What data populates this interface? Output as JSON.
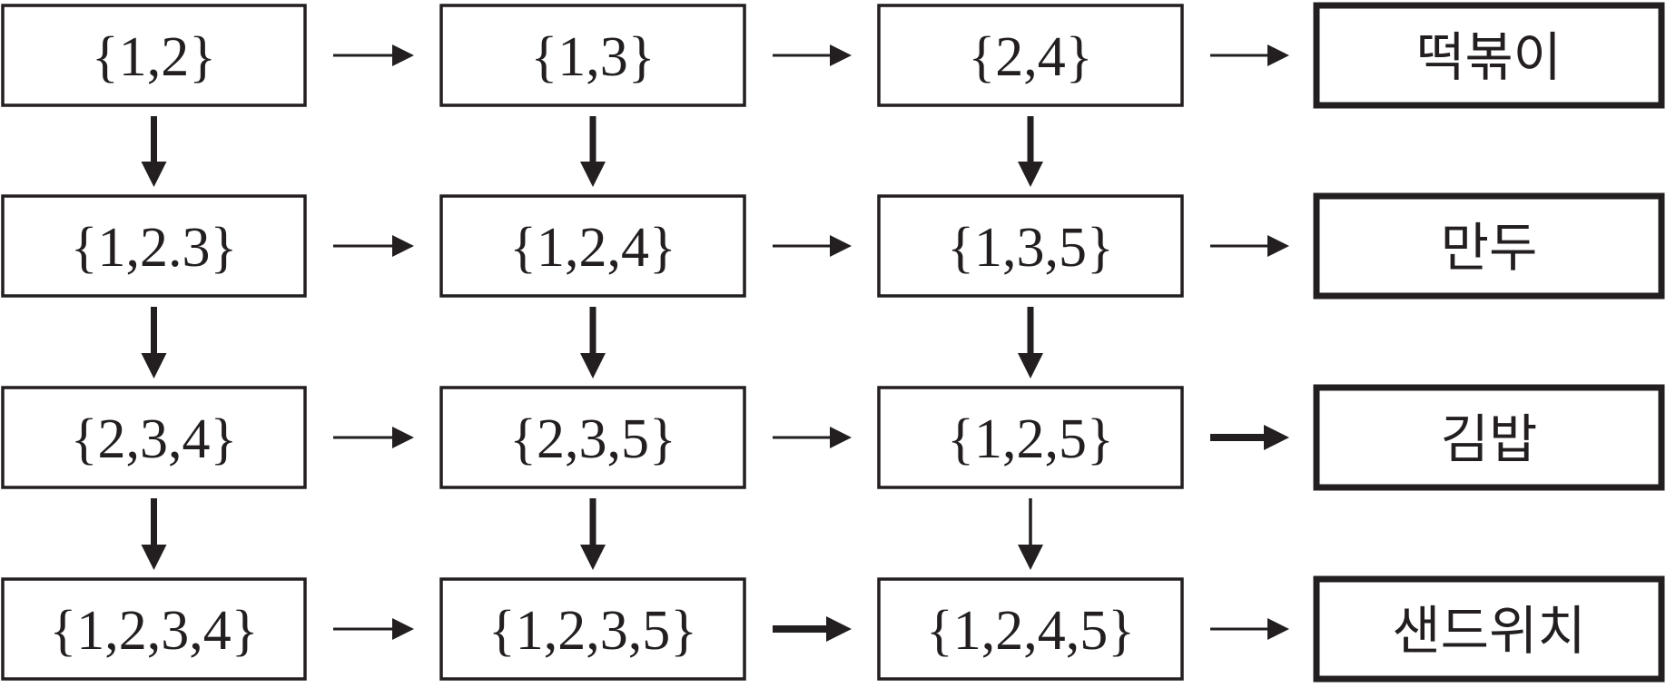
{
  "nodes": [
    {
      "label": "{1,2}"
    },
    {
      "label": "{1,3}"
    },
    {
      "label": "{2,4}"
    },
    {
      "label": "떡볶이"
    },
    {
      "label": "{1,2.3}"
    },
    {
      "label": "{1,2,4}"
    },
    {
      "label": "{1,3,5}"
    },
    {
      "label": "만두"
    },
    {
      "label": "{2,3,4}"
    },
    {
      "label": "{2,3,5}"
    },
    {
      "label": "{1,2,5}"
    },
    {
      "label": "김밥"
    },
    {
      "label": "{1,2,3,4}"
    },
    {
      "label": "{1,2,3,5}"
    },
    {
      "label": "{1,2,4,5}"
    },
    {
      "label": "샌드위치"
    }
  ]
}
